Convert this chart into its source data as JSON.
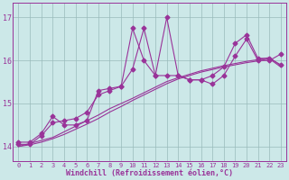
{
  "x": [
    0,
    1,
    2,
    3,
    4,
    5,
    6,
    7,
    8,
    9,
    10,
    11,
    12,
    13,
    14,
    15,
    16,
    17,
    18,
    19,
    20,
    21,
    22,
    23
  ],
  "y_jagged1": [
    14.1,
    14.1,
    14.3,
    14.7,
    14.5,
    14.5,
    14.6,
    15.3,
    15.35,
    15.4,
    15.8,
    16.75,
    15.65,
    17.0,
    15.65,
    15.55,
    15.55,
    15.45,
    15.65,
    16.1,
    16.5,
    16.0,
    16.0,
    16.15
  ],
  "y_jagged2": [
    14.05,
    14.05,
    14.25,
    14.55,
    14.6,
    14.65,
    14.8,
    15.2,
    15.3,
    15.4,
    16.75,
    16.0,
    15.65,
    15.65,
    15.65,
    15.55,
    15.55,
    15.65,
    15.85,
    16.4,
    16.6,
    16.05,
    16.05,
    15.9
  ],
  "y_straight1": [
    14.0,
    14.07,
    14.14,
    14.21,
    14.34,
    14.47,
    14.6,
    14.73,
    14.88,
    15.0,
    15.12,
    15.25,
    15.38,
    15.51,
    15.6,
    15.68,
    15.76,
    15.82,
    15.88,
    15.93,
    15.98,
    16.02,
    16.07,
    15.88
  ],
  "y_straight2": [
    14.0,
    14.04,
    14.1,
    14.18,
    14.28,
    14.4,
    14.52,
    14.65,
    14.8,
    14.93,
    15.07,
    15.2,
    15.33,
    15.46,
    15.57,
    15.65,
    15.73,
    15.79,
    15.85,
    15.9,
    15.95,
    15.99,
    16.04,
    15.85
  ],
  "color": "#993399",
  "background": "#cce8e8",
  "grid_color": "#99bbbb",
  "xlabel": "Windchill (Refroidissement éolien,°C)",
  "yticks": [
    14,
    15,
    16,
    17
  ],
  "xticks": [
    0,
    1,
    2,
    3,
    4,
    5,
    6,
    7,
    8,
    9,
    10,
    11,
    12,
    13,
    14,
    15,
    16,
    17,
    18,
    19,
    20,
    21,
    22,
    23
  ],
  "xlim": [
    -0.5,
    23.5
  ],
  "ylim": [
    13.65,
    17.35
  ],
  "marker": "D",
  "markersize": 2.5,
  "linewidth": 0.8
}
